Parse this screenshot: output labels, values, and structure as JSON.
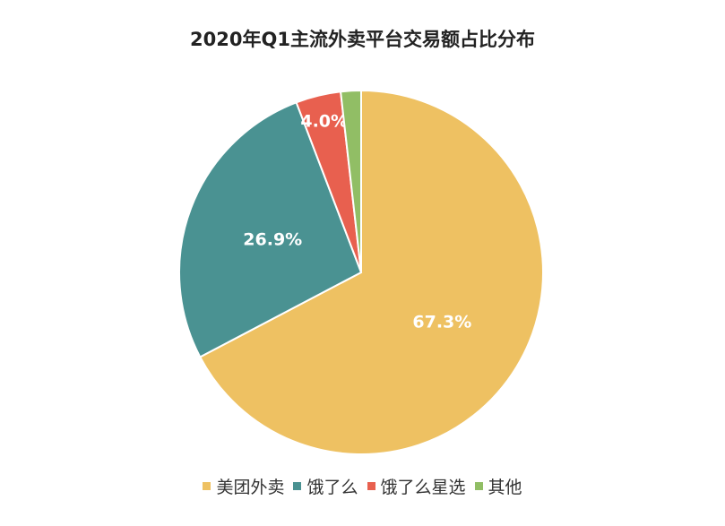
{
  "chart_data": {
    "type": "pie",
    "title": "2020年Q1主流外卖平台交易额占比分布",
    "categories": [
      "美团外卖",
      "饿了么",
      "饿了么星选",
      "其他"
    ],
    "values": [
      67.3,
      26.9,
      4.0,
      1.8
    ],
    "data_labels": [
      "67.3%",
      "26.9%",
      "4.0%",
      ""
    ],
    "colors": [
      "#eec162",
      "#4a9292",
      "#e8604f",
      "#91be65"
    ],
    "start_angle": "12 o'clock",
    "direction": "clockwise",
    "legend_position": "bottom"
  }
}
